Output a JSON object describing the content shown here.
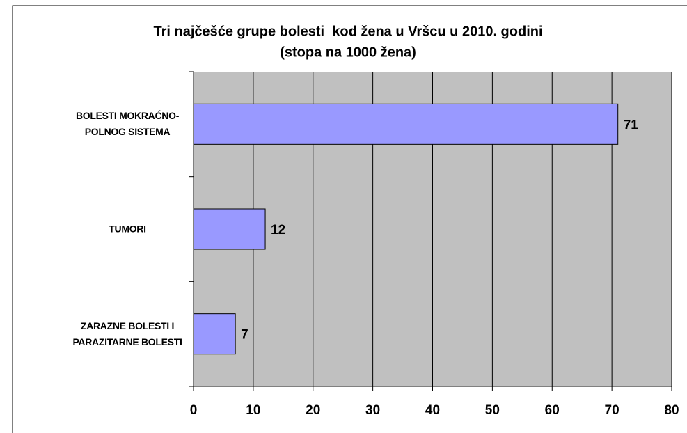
{
  "chart_data": {
    "type": "bar",
    "orientation": "horizontal",
    "title": "Tri najčešće grupe bolesti  kod žena u Vršcu u 2010. godini",
    "subtitle": "(stopa na 1000 žena)",
    "categories": [
      "BOLESTI MOKRAĆNO-POLNOG SISTEMA",
      "TUMORI",
      "ZARAZNE BOLESTI I PARAZITARNE BOLESTI"
    ],
    "values": [
      71,
      12,
      7
    ],
    "color": "#9999ff",
    "xlim": [
      0,
      80
    ],
    "xticks": [
      0,
      10,
      20,
      30,
      40,
      50,
      60,
      70,
      80
    ],
    "grid": true
  }
}
